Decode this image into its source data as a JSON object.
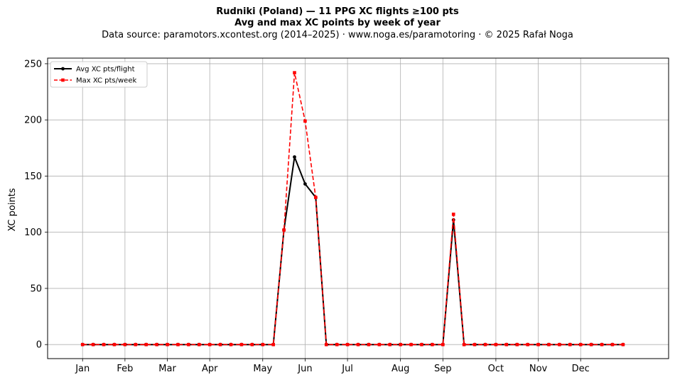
{
  "chart_data": {
    "type": "line",
    "title": "Rudniki (Poland)  —  11 PPG XC flights ≥100 pts",
    "subtitle": "Avg and max XC points by week of year",
    "source_line": "Data source: paramotors.xcontest.org (2014–2025)  ·  www.noga.es/paramotoring  ·  © 2025 Rafał Noga",
    "xlabel": "",
    "ylabel": "XC points",
    "x_ticks": [
      {
        "label": "Jan",
        "week": 1
      },
      {
        "label": "Feb",
        "week": 5
      },
      {
        "label": "Mar",
        "week": 9
      },
      {
        "label": "Apr",
        "week": 13
      },
      {
        "label": "May",
        "week": 18
      },
      {
        "label": "Jun",
        "week": 22
      },
      {
        "label": "Jul",
        "week": 26
      },
      {
        "label": "Aug",
        "week": 31
      },
      {
        "label": "Sep",
        "week": 35
      },
      {
        "label": "Oct",
        "week": 40
      },
      {
        "label": "Nov",
        "week": 44
      },
      {
        "label": "Dec",
        "week": 48
      }
    ],
    "xlim": [
      -2.3,
      56.3
    ],
    "ylim": [
      -12.5,
      255
    ],
    "y_ticks": [
      0,
      50,
      100,
      150,
      200,
      250
    ],
    "grid": true,
    "legend_position": "top-left",
    "x": [
      1,
      2,
      3,
      4,
      5,
      6,
      7,
      8,
      9,
      10,
      11,
      12,
      13,
      14,
      15,
      16,
      17,
      18,
      19,
      20,
      21,
      22,
      23,
      24,
      25,
      26,
      27,
      28,
      29,
      30,
      31,
      32,
      33,
      34,
      35,
      36,
      37,
      38,
      39,
      40,
      41,
      42,
      43,
      44,
      45,
      46,
      47,
      48,
      49,
      50,
      51,
      52
    ],
    "series": [
      {
        "name": "Avg XC pts/flight",
        "color": "#000000",
        "style": "solid",
        "marker": "circle",
        "values": [
          0,
          0,
          0,
          0,
          0,
          0,
          0,
          0,
          0,
          0,
          0,
          0,
          0,
          0,
          0,
          0,
          0,
          0,
          0,
          102,
          167,
          143,
          131,
          0,
          0,
          0,
          0,
          0,
          0,
          0,
          0,
          0,
          0,
          0,
          0,
          111,
          0,
          0,
          0,
          0,
          0,
          0,
          0,
          0,
          0,
          0,
          0,
          0,
          0,
          0,
          0,
          0
        ]
      },
      {
        "name": "Max XC pts/week",
        "color": "#ff0000",
        "style": "dashed",
        "marker": "square",
        "values": [
          0,
          0,
          0,
          0,
          0,
          0,
          0,
          0,
          0,
          0,
          0,
          0,
          0,
          0,
          0,
          0,
          0,
          0,
          0,
          102,
          242,
          199,
          131,
          0,
          0,
          0,
          0,
          0,
          0,
          0,
          0,
          0,
          0,
          0,
          0,
          116,
          0,
          0,
          0,
          0,
          0,
          0,
          0,
          0,
          0,
          0,
          0,
          0,
          0,
          0,
          0,
          0
        ]
      }
    ]
  }
}
